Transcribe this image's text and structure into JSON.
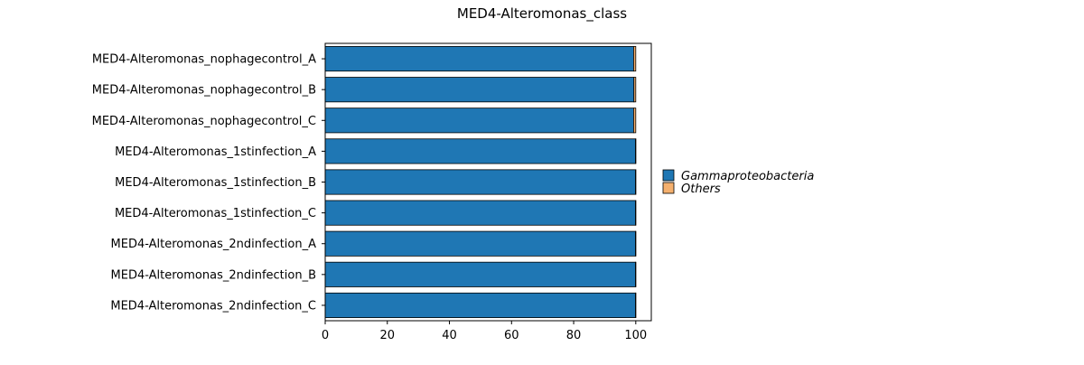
{
  "chart_data": {
    "type": "bar",
    "orientation": "horizontal",
    "stacked": true,
    "title": "MED4-Alteromonas_class",
    "xlabel": "",
    "ylabel": "",
    "xlim": [
      0,
      105
    ],
    "xticks": [
      0,
      20,
      40,
      60,
      80,
      100
    ],
    "grid": false,
    "legend_position": "right",
    "categories": [
      "MED4-Alteromonas_nophagecontrol_A",
      "MED4-Alteromonas_nophagecontrol_B",
      "MED4-Alteromonas_nophagecontrol_C",
      "MED4-Alteromonas_1stinfection_A",
      "MED4-Alteromonas_1stinfection_B",
      "MED4-Alteromonas_1stinfection_C",
      "MED4-Alteromonas_2ndinfection_A",
      "MED4-Alteromonas_2ndinfection_B",
      "MED4-Alteromonas_2ndinfection_C"
    ],
    "series": [
      {
        "name": "Gammaproteobacteria",
        "color": "#1f77b4",
        "values": [
          99.3,
          99.4,
          99.3,
          99.9,
          99.9,
          99.9,
          99.9,
          99.9,
          99.9
        ]
      },
      {
        "name": "Others",
        "color": "#f5b06e",
        "values": [
          0.7,
          0.6,
          0.7,
          0.1,
          0.1,
          0.1,
          0.1,
          0.1,
          0.1
        ]
      }
    ]
  }
}
